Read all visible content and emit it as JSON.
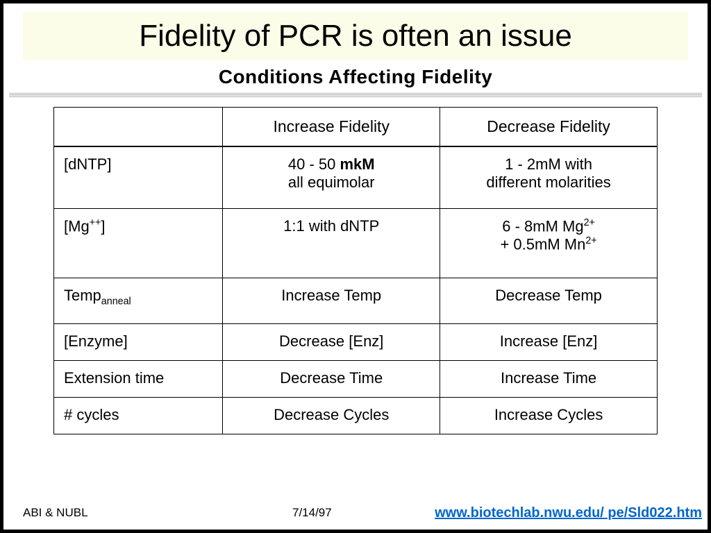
{
  "slide_title": "Fidelity of PCR is often an issue",
  "caption_title": "Conditions Affecting Fidelity",
  "table": {
    "col_increase": "Increase Fidelity",
    "col_decrease": "Decrease Fidelity",
    "rows": [
      {
        "param_html": "[dNTP]",
        "inc_html": "40 - 50 <b>mkM</b><br>all equimolar",
        "dec_html": "1 - 2mM with<br>different molarities"
      },
      {
        "param_html": "[Mg<sup class='sup'>++</sup>]",
        "inc_html": "1:1 with dNTP",
        "dec_html": "6 - 8mM Mg<sup class='sup'>2+</sup><br>+ 0.5mM Mn<sup class='sup'>2+</sup>"
      },
      {
        "param_html": "Temp<sub class='sub'>anneal</sub>",
        "inc_html": "Increase Temp",
        "dec_html": "Decrease Temp"
      },
      {
        "param_html": "[Enzyme]",
        "inc_html": "Decrease [Enz]",
        "dec_html": "Increase [Enz]"
      },
      {
        "param_html": "Extension time",
        "inc_html": "Decrease Time",
        "dec_html": "Increase Time"
      },
      {
        "param_html": "# cycles",
        "inc_html": "Decrease Cycles",
        "dec_html": "Increase Cycles"
      }
    ],
    "row_padding": {
      "r2_inc": "padding-bottom:34px",
      "r4_pad": "padding-bottom:14px",
      "r5_pad": "padding-bottom:14px",
      "r6_pad": "padding-bottom:14px"
    }
  },
  "footer": {
    "left": "ABI & NUBL",
    "date": "7/14/97",
    "link": "www.biotechlab.nwu.edu/ pe/Sld022.htm",
    "link_color": "#0066cc"
  },
  "colors": {
    "title_bg": "#fbfde8",
    "border": "#000000",
    "text": "#000000",
    "bg": "#ffffff"
  }
}
